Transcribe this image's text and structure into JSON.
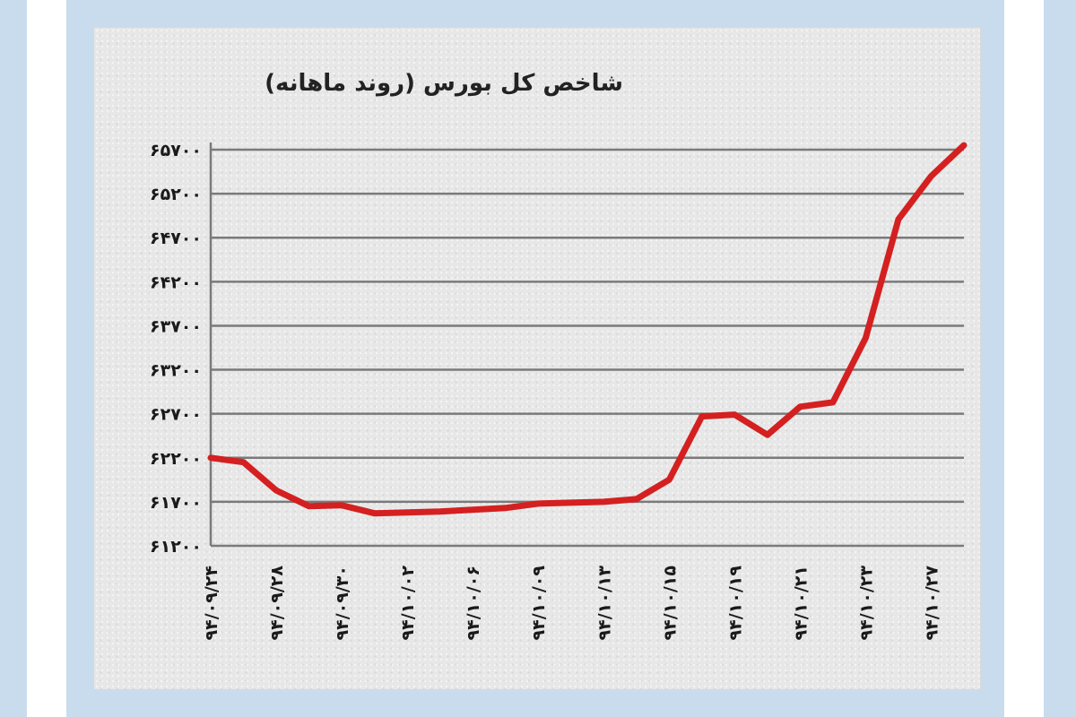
{
  "chart_data": {
    "type": "line",
    "title": "شاخص کل بورس (روند ماهانه)",
    "xlabel": "",
    "ylabel": "",
    "grid": true,
    "legend": "none",
    "y_ticks": [
      "۶۱۲۰۰",
      "۶۱۷۰۰",
      "۶۲۲۰۰",
      "۶۲۷۰۰",
      "۶۳۲۰۰",
      "۶۳۷۰۰",
      "۶۴۲۰۰",
      "۶۴۷۰۰",
      "۶۵۲۰۰",
      "۶۵۷۰۰"
    ],
    "y_tick_values": [
      61200,
      61700,
      62200,
      62700,
      63200,
      63700,
      64200,
      64700,
      65200,
      65700
    ],
    "ylim": [
      61200,
      65700
    ],
    "categories": [
      "۹۴/۰۹/۲۴",
      "۹۴/۰۹/۲۸",
      "۹۴/۰۹/۳۰",
      "۹۴/۱۰/۰۲",
      "۹۴/۱۰/۰۶",
      "۹۴/۱۰/۰۹",
      "۹۴/۱۰/۱۳",
      "۹۴/۱۰/۱۵",
      "۹۴/۱۰/۱۹",
      "۹۴/۱۰/۲۱",
      "۹۴/۱۰/۲۳",
      "۹۴/۱۰/۲۷"
    ],
    "x": [
      0,
      0.5,
      1,
      1.5,
      2,
      2.5,
      3,
      3.5,
      4,
      4.5,
      5,
      5.5,
      6,
      6.5,
      7,
      7.5,
      8,
      8.5,
      9,
      9.5,
      10,
      10.5,
      11,
      11.5
    ],
    "series": [
      {
        "color": "#d42020",
        "values": [
          62200,
          62150,
          61830,
          61650,
          61660,
          61570,
          61580,
          61590,
          61610,
          61630,
          61680,
          61690,
          61700,
          61730,
          61950,
          62670,
          62690,
          62460,
          62780,
          62830,
          63560,
          64910,
          65400,
          65750
        ]
      }
    ]
  },
  "colors": {
    "frame": "#c9dcee",
    "panel": "#e7e7e7",
    "grid": "#7a7a7a",
    "line": "#d42020",
    "title": "#222222"
  }
}
